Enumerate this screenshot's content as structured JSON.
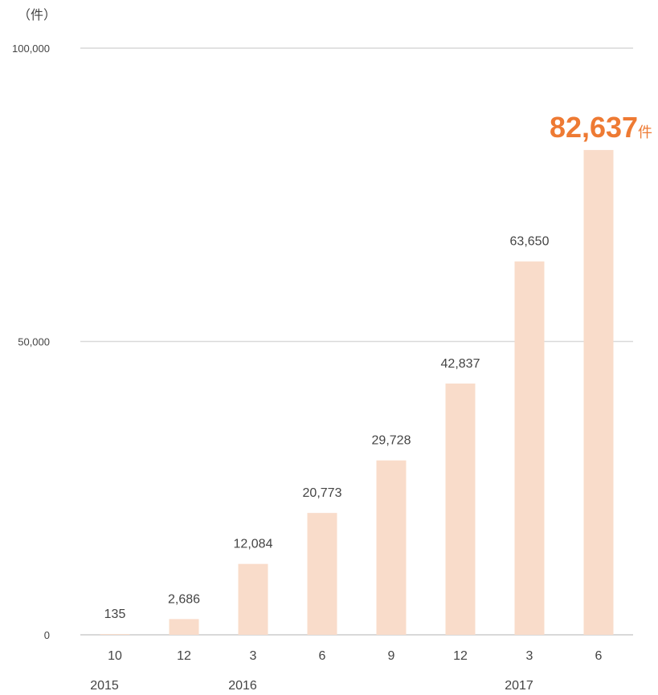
{
  "chart_data": {
    "type": "bar",
    "unit_label": "（件）",
    "categories": [
      "10",
      "12",
      "3",
      "6",
      "9",
      "12",
      "3",
      "6"
    ],
    "years": [
      {
        "label": "2015",
        "category_index": 0
      },
      {
        "label": "2016",
        "category_index": 2
      },
      {
        "label": "2017",
        "category_index": 6
      }
    ],
    "values": [
      135,
      2686,
      12084,
      20773,
      29728,
      42837,
      63650,
      82637
    ],
    "data_labels": [
      "135",
      "2,686",
      "12,084",
      "20,773",
      "29,728",
      "42,837",
      "63,650",
      "82,637"
    ],
    "highlight": {
      "index": 7,
      "value_text": "82,637",
      "suffix": "件"
    },
    "yticks": [
      {
        "value": 0,
        "label": "0"
      },
      {
        "value": 50000,
        "label": "50,000"
      },
      {
        "value": 100000,
        "label": "100,000"
      }
    ],
    "ylim": [
      0,
      100000
    ],
    "grid": true,
    "colors": {
      "bar": "#f9dcca",
      "grid": "#d9d9d9",
      "text": "#444444",
      "highlight": "#ee7a33"
    }
  }
}
